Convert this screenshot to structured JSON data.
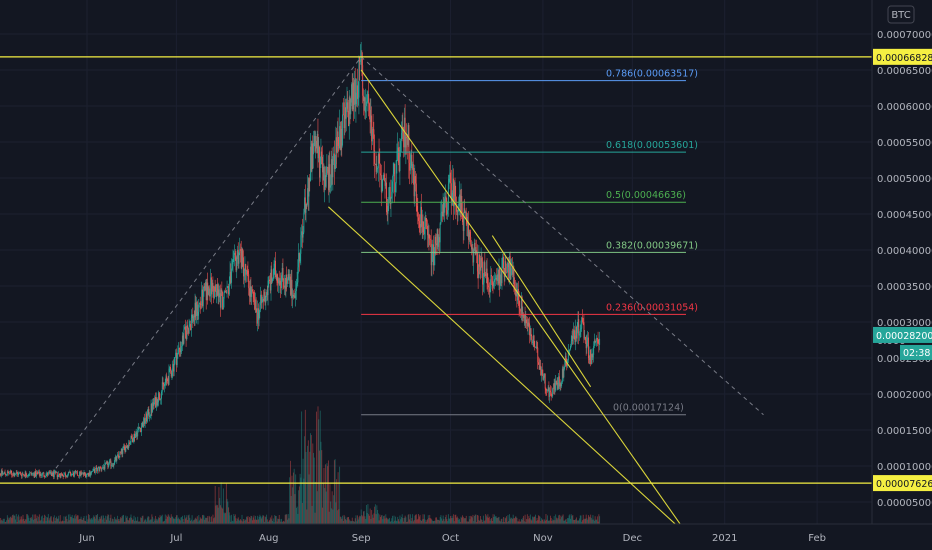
{
  "currency_label": "BTC",
  "colors": {
    "background": "#131722",
    "up": "#26a69a",
    "down": "#ef5350",
    "support_line": "#f5ef42",
    "wedge_line": "#d9d43a",
    "dashed_line": "#787b86",
    "axis_text": "#b2b5be",
    "last_price_bg": "#26a69a",
    "level_label_bg": "#f5ef42"
  },
  "chart_data": {
    "type": "candlestick",
    "title": "",
    "xlabel": "",
    "ylabel": "",
    "x_tick_labels": [
      "Jun",
      "Jul",
      "Aug",
      "Sep",
      "Oct",
      "Nov",
      "Dec",
      "2021",
      "Feb"
    ],
    "y_tick_labels": [
      "0.00070000",
      "0.00065000",
      "0.00060000",
      "0.00055000",
      "0.00050000",
      "0.00045000",
      "0.00040000",
      "0.00035000",
      "0.00030000",
      "0.00025000",
      "0.00020000",
      "0.00015000",
      "0.00010000",
      "0.00005000"
    ],
    "ylim": [
      3e-05,
      0.00071
    ],
    "price_anchors": [
      {
        "date": "2020-05-01",
        "price": 9e-05
      },
      {
        "date": "2020-05-22",
        "price": 8.8e-05
      },
      {
        "date": "2020-06-01",
        "price": 8.9e-05
      },
      {
        "date": "2020-06-10",
        "price": 0.000105
      },
      {
        "date": "2020-06-20",
        "price": 0.00016
      },
      {
        "date": "2020-06-28",
        "price": 0.00022
      },
      {
        "date": "2020-07-05",
        "price": 0.000295
      },
      {
        "date": "2020-07-12",
        "price": 0.00035
      },
      {
        "date": "2020-07-17",
        "price": 0.00033
      },
      {
        "date": "2020-07-22",
        "price": 0.0004
      },
      {
        "date": "2020-07-28",
        "price": 0.00031
      },
      {
        "date": "2020-08-03",
        "price": 0.00037
      },
      {
        "date": "2020-08-10",
        "price": 0.000345
      },
      {
        "date": "2020-08-16",
        "price": 0.00056
      },
      {
        "date": "2020-08-20",
        "price": 0.00049
      },
      {
        "date": "2020-08-26",
        "price": 0.00057
      },
      {
        "date": "2020-09-01",
        "price": 0.00065
      },
      {
        "date": "2020-09-06",
        "price": 0.00053
      },
      {
        "date": "2020-09-10",
        "price": 0.00046
      },
      {
        "date": "2020-09-16",
        "price": 0.00057
      },
      {
        "date": "2020-09-20",
        "price": 0.00046
      },
      {
        "date": "2020-09-25",
        "price": 0.00039
      },
      {
        "date": "2020-10-01",
        "price": 0.00049
      },
      {
        "date": "2020-10-05",
        "price": 0.00045
      },
      {
        "date": "2020-10-10",
        "price": 0.00038
      },
      {
        "date": "2020-10-15",
        "price": 0.00035
      },
      {
        "date": "2020-10-20",
        "price": 0.000385
      },
      {
        "date": "2020-10-24",
        "price": 0.00033
      },
      {
        "date": "2020-10-28",
        "price": 0.00028
      },
      {
        "date": "2020-11-03",
        "price": 0.0002
      },
      {
        "date": "2020-11-07",
        "price": 0.00022
      },
      {
        "date": "2020-11-11",
        "price": 0.00028
      },
      {
        "date": "2020-11-14",
        "price": 0.0003
      },
      {
        "date": "2020-11-17",
        "price": 0.00025
      },
      {
        "date": "2020-11-20",
        "price": 0.000282
      }
    ],
    "horizontal_levels": [
      {
        "value": 0.00066828,
        "label": "0.00066828"
      },
      {
        "value": 7.626e-05,
        "label": "0.00007626"
      }
    ],
    "fib_levels": [
      {
        "ratio": "0.786",
        "value": 0.00063517,
        "label": "0.786(0.00063517)",
        "color": "#5b9cf6"
      },
      {
        "ratio": "0.618",
        "value": 0.00053601,
        "label": "0.618(0.00053601)",
        "color": "#26a69a"
      },
      {
        "ratio": "0.5",
        "value": 0.00046636,
        "label": "0.5(0.00046636)",
        "color": "#4caf50"
      },
      {
        "ratio": "0.382",
        "value": 0.00039671,
        "label": "0.382(0.00039671)",
        "color": "#81c784"
      },
      {
        "ratio": "0.236",
        "value": 0.00031054,
        "label": "0.236(0.00031054)",
        "color": "#f23645"
      },
      {
        "ratio": "0",
        "value": 0.00017124,
        "label": "0(0.00017124)",
        "color": "#787b86"
      }
    ],
    "fib_start_date": "2020-09-01",
    "fib_end_date": "2020-12-19",
    "trend_lines": [
      {
        "name": "wedge-upper",
        "from": {
          "date": "2020-09-01",
          "price": 0.00065
        },
        "to": {
          "date": "2020-12-20",
          "price": 2e-06
        }
      },
      {
        "name": "wedge-lower",
        "from": {
          "date": "2020-08-21",
          "price": 0.00046
        },
        "to": {
          "date": "2020-12-20",
          "price": 2e-06
        }
      },
      {
        "name": "wedge-inner",
        "from": {
          "date": "2020-10-15",
          "price": 0.00042
        },
        "to": {
          "date": "2020-11-17",
          "price": 0.00021
        }
      }
    ],
    "dashed_lines": [
      {
        "from": {
          "date": "2020-05-20",
          "price": 8.8e-05
        },
        "to": {
          "date": "2020-09-01",
          "price": 0.00066828
        }
      },
      {
        "from": {
          "date": "2020-09-01",
          "price": 0.00066828
        },
        "to": {
          "date": "2021-01-14",
          "price": 0.00017124
        }
      }
    ],
    "last_price": {
      "value": 0.000282,
      "label": "0.00028200",
      "countdown": "02:38"
    },
    "partial_tick_label": "0.000"
  }
}
